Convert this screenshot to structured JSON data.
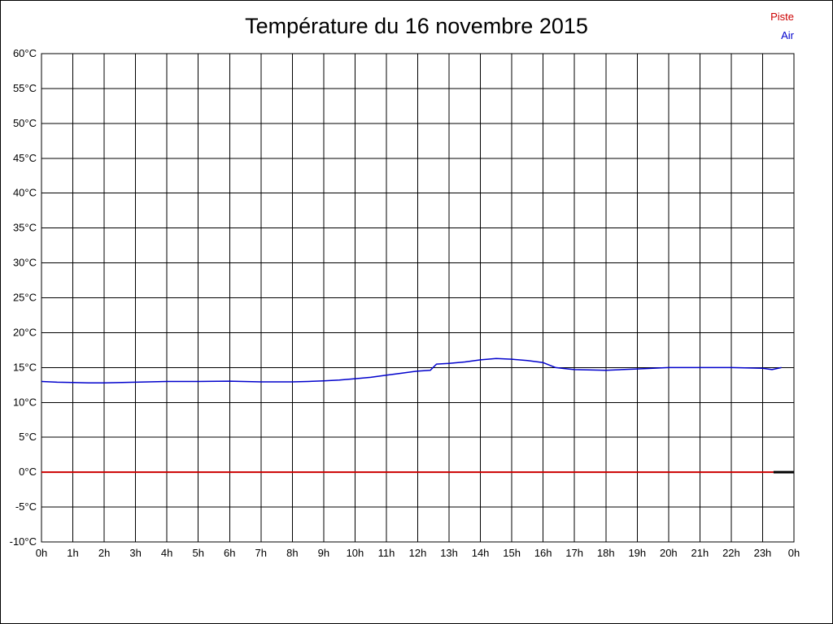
{
  "title": "Température du 16 novembre 2015",
  "legend": {
    "piste": {
      "label": "Piste",
      "color": "#cc0000"
    },
    "air": {
      "label": "Air",
      "color": "#0000cc"
    }
  },
  "chart_data": {
    "type": "line",
    "title": "Température du 16 novembre 2015",
    "xlabel": "",
    "ylabel": "",
    "xlim": [
      0,
      24
    ],
    "ylim": [
      -10,
      60
    ],
    "ytick_step": 5,
    "grid": true,
    "legend_position": "top-right",
    "x_tick_labels": [
      "0h",
      "1h",
      "2h",
      "3h",
      "4h",
      "5h",
      "6h",
      "7h",
      "8h",
      "9h",
      "10h",
      "11h",
      "12h",
      "13h",
      "14h",
      "15h",
      "16h",
      "17h",
      "18h",
      "19h",
      "20h",
      "21h",
      "22h",
      "23h",
      "0h"
    ],
    "y_tick_labels": [
      "60°C",
      "55°C",
      "50°C",
      "45°C",
      "40°C",
      "35°C",
      "30°C",
      "25°C",
      "20°C",
      "15°C",
      "10°C",
      "5°C",
      "0°C",
      "-5°C",
      "-10°C"
    ],
    "series": [
      {
        "name": "Piste",
        "color": "#cc0000",
        "width": 2,
        "x": [
          0,
          23.35
        ],
        "values": [
          0,
          0
        ]
      },
      {
        "name": "Air",
        "color": "#0000cc",
        "width": 1.5,
        "x": [
          0,
          0.5,
          1,
          1.5,
          2,
          3,
          4,
          5,
          6,
          7,
          8,
          8.5,
          9,
          9.5,
          10,
          10.5,
          11,
          11.5,
          12,
          12.4,
          12.6,
          13,
          13.5,
          14,
          14.5,
          15,
          15.5,
          16,
          16.4,
          16.8,
          17,
          18,
          18.5,
          19,
          20,
          21,
          22,
          23,
          23.3,
          23.6
        ],
        "values": [
          13.0,
          12.9,
          12.85,
          12.8,
          12.8,
          12.9,
          13.0,
          13.0,
          13.05,
          12.95,
          12.95,
          13.0,
          13.1,
          13.2,
          13.4,
          13.6,
          13.9,
          14.2,
          14.5,
          14.6,
          15.5,
          15.6,
          15.8,
          16.1,
          16.3,
          16.2,
          16.0,
          15.7,
          15.0,
          14.8,
          14.7,
          14.6,
          14.7,
          14.8,
          15.0,
          15.0,
          15.0,
          14.9,
          14.7,
          15.0
        ]
      }
    ],
    "extra_segments": [
      {
        "name": "zero-line-end-marker",
        "color": "#000000",
        "width": 3,
        "x": [
          23.35,
          24
        ],
        "values": [
          0,
          0
        ]
      }
    ]
  }
}
